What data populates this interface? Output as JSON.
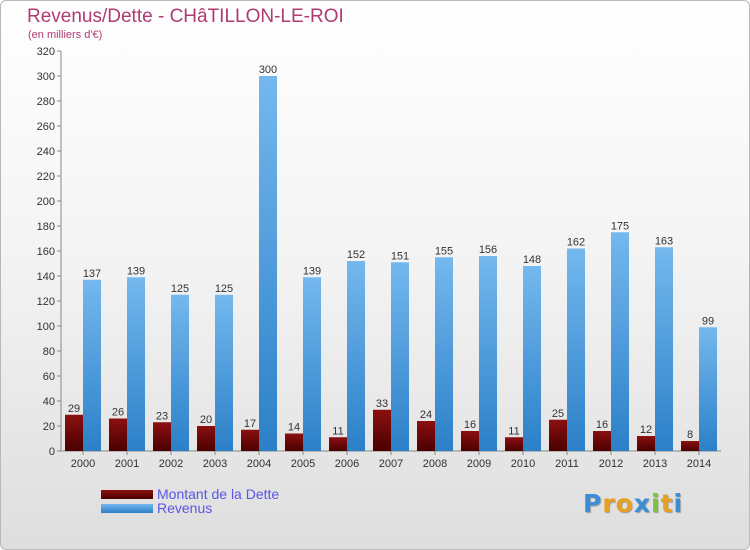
{
  "header": {
    "title": "Revenus/Dette - CHâTILLON-LE-ROI",
    "subtitle": "(en milliers d'€)"
  },
  "legend": {
    "debt": "Montant de la Dette",
    "revenue": "Revenus"
  },
  "logo": {
    "text": "Proxiti",
    "letters": [
      "P",
      "r",
      "o",
      "x",
      "i",
      "t",
      "i"
    ],
    "colors": [
      "#3a8ed6",
      "#e8a020",
      "#e8a020",
      "#3a8ed6",
      "#7cc242",
      "#e8a020",
      "#3a8ed6"
    ]
  },
  "colors": {
    "debt_top": "#8c1010",
    "debt_bottom": "#4a0000",
    "revenue_top": "#74b8ee",
    "revenue_bottom": "#2c80c8",
    "title": "#b03a72"
  },
  "chart_data": {
    "type": "bar",
    "title": "Revenus/Dette - CHâTILLON-LE-ROI",
    "ylabel": "(en milliers d'€)",
    "xlabel": "",
    "ylim": [
      0,
      320
    ],
    "ytick_step": 20,
    "grid": false,
    "legend_position": "bottom-left",
    "categories": [
      "2000",
      "2001",
      "2002",
      "2003",
      "2004",
      "2005",
      "2006",
      "2007",
      "2008",
      "2009",
      "2010",
      "2011",
      "2012",
      "2013",
      "2014"
    ],
    "series": [
      {
        "name": "Montant de la Dette",
        "values": [
          29,
          26,
          23,
          20,
          17,
          14,
          11,
          33,
          24,
          16,
          11,
          25,
          16,
          12,
          8
        ]
      },
      {
        "name": "Revenus",
        "values": [
          137,
          139,
          125,
          125,
          300,
          139,
          152,
          151,
          155,
          156,
          148,
          162,
          175,
          163,
          99
        ]
      }
    ]
  }
}
